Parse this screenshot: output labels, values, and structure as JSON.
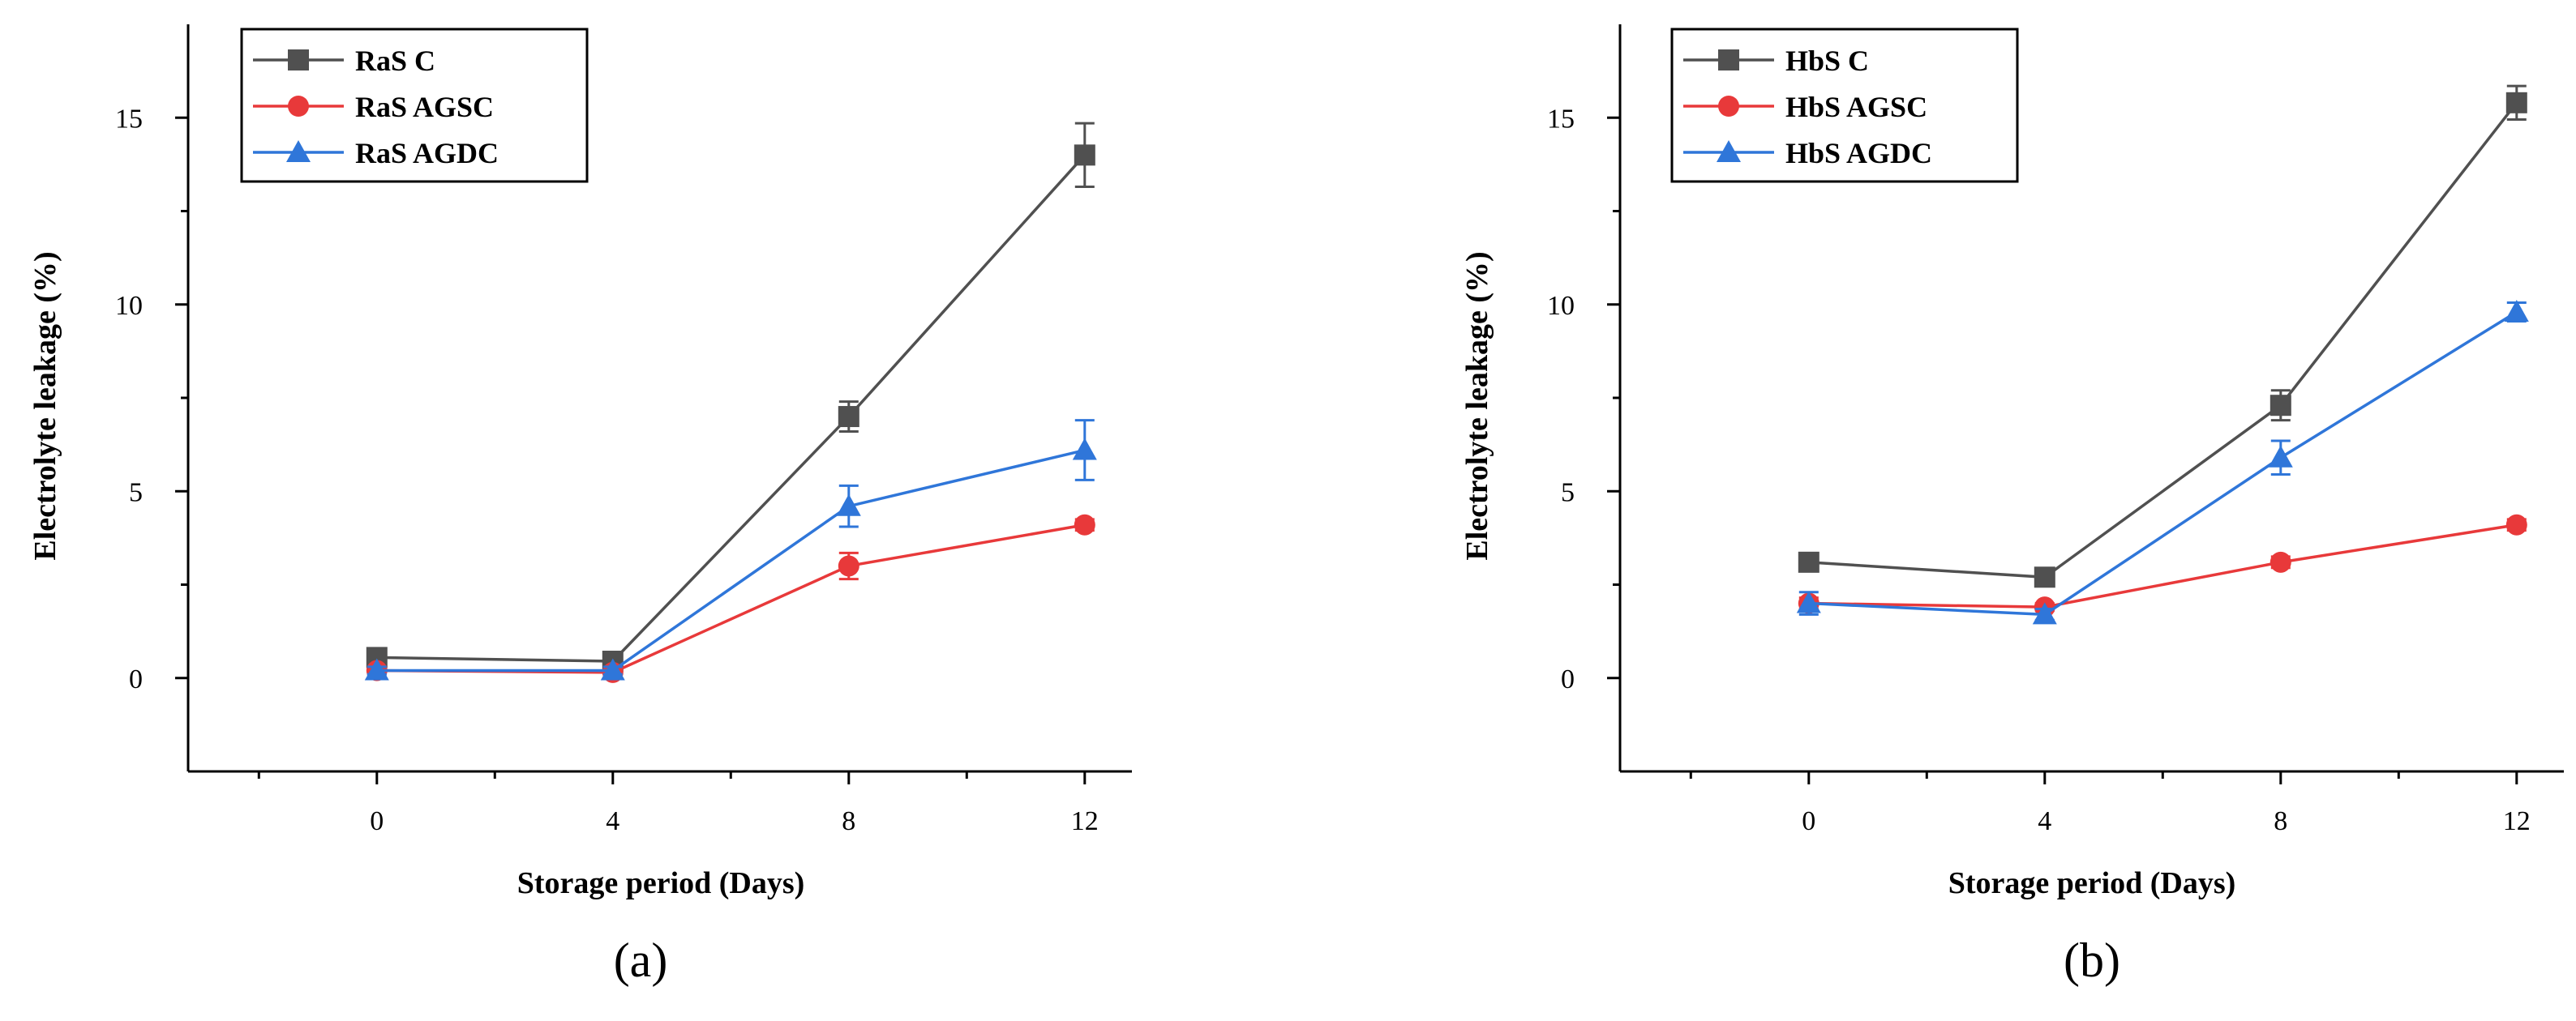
{
  "chart_data": [
    {
      "type": "line",
      "panel_label": "(a)",
      "xlabel": "Storage period (Days)",
      "ylabel": "Electrolyte leakage (%)",
      "x": [
        0,
        4,
        8,
        12
      ],
      "x_tick_labels": [
        "0",
        "4",
        "8",
        "12"
      ],
      "y_tick_labels": [
        "0",
        "5",
        "10",
        "15"
      ],
      "xlim": [
        -3.2,
        12.8
      ],
      "ylim": [
        -2.5,
        17.5
      ],
      "legend_position": "top-left",
      "series": [
        {
          "name": "RaS C",
          "marker": "square",
          "color": "#505050",
          "values": [
            0.55,
            0.45,
            7.0,
            14.0
          ],
          "errors": [
            0.1,
            0.1,
            0.4,
            0.85
          ]
        },
        {
          "name": "RaS AGSC",
          "marker": "circle",
          "color": "#e8393a",
          "values": [
            0.2,
            0.15,
            3.0,
            4.1
          ],
          "errors": [
            0.1,
            0.1,
            0.35,
            0.15
          ]
        },
        {
          "name": "RaS AGDC",
          "marker": "triangle",
          "color": "#2f76d9",
          "values": [
            0.2,
            0.2,
            4.6,
            6.1
          ],
          "errors": [
            0.1,
            0.1,
            0.55,
            0.8
          ]
        }
      ]
    },
    {
      "type": "line",
      "panel_label": "(b)",
      "xlabel": "Storage period (Days)",
      "ylabel": "Electrolyte leakage (%)",
      "x": [
        0,
        4,
        8,
        12
      ],
      "x_tick_labels": [
        "0",
        "4",
        "8",
        "12"
      ],
      "y_tick_labels": [
        "0",
        "5",
        "10",
        "15"
      ],
      "xlim": [
        -3.2,
        12.8
      ],
      "ylim": [
        -2.5,
        17.5
      ],
      "legend_position": "top-left",
      "series": [
        {
          "name": "HbS C",
          "marker": "square",
          "color": "#505050",
          "values": [
            3.1,
            2.7,
            7.3,
            15.4
          ],
          "errors": [
            0.1,
            0.15,
            0.4,
            0.45
          ]
        },
        {
          "name": "HbS AGSC",
          "marker": "circle",
          "color": "#e8393a",
          "values": [
            2.0,
            1.9,
            3.1,
            4.1
          ],
          "errors": [
            0.15,
            0.1,
            0.15,
            0.15
          ]
        },
        {
          "name": "HbS AGDC",
          "marker": "triangle",
          "color": "#2f76d9",
          "values": [
            2.0,
            1.7,
            5.9,
            9.8
          ],
          "errors": [
            0.3,
            0.15,
            0.45,
            0.25
          ]
        }
      ]
    }
  ]
}
